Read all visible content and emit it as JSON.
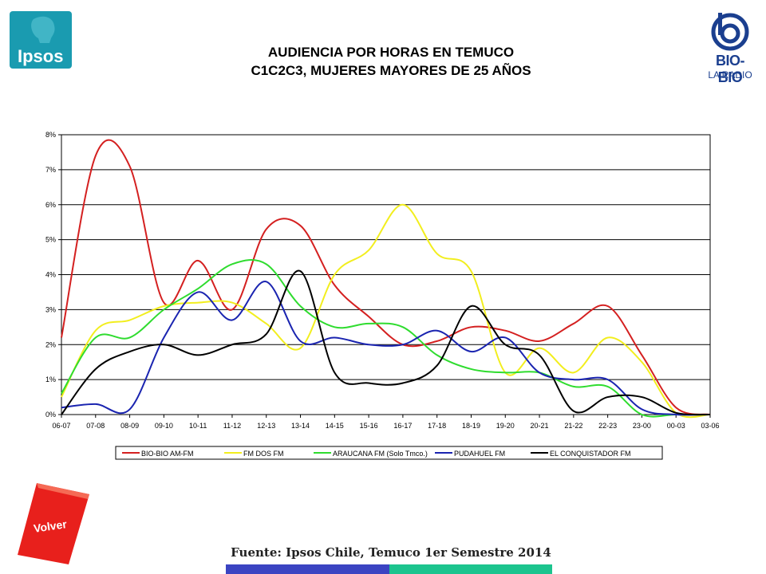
{
  "logos": {
    "ipsos_text": "Ipsos",
    "biobio_name": "BIO-BIO",
    "biobio_sub": "LA RADIO"
  },
  "title_line1": "AUDIENCIA POR HORAS EN TEMUCO",
  "title_line2": "C1C2C3, MUJERES MAYORES DE 25 AÑOS",
  "volver_label": "Volver",
  "source": "Fuente: Ipsos Chile, Temuco 1er Semestre 2014",
  "colors": {
    "bar_blue": "#3b44c2",
    "bar_teal": "#1cc48e",
    "volver_red": "#e8201c"
  },
  "chart_data": {
    "type": "line",
    "title": "",
    "xlabel": "",
    "ylabel": "",
    "ylim": [
      0,
      8
    ],
    "y_unit": "%",
    "y_ticks": [
      "0%",
      "1%",
      "2%",
      "3%",
      "4%",
      "5%",
      "6%",
      "7%",
      "8%"
    ],
    "grid": true,
    "legend_position": "bottom",
    "categories": [
      "06-07",
      "07-08",
      "08-09",
      "09-10",
      "10-11",
      "11-12",
      "12-13",
      "13-14",
      "14-15",
      "15-16",
      "16-17",
      "17-18",
      "18-19",
      "19-20",
      "20-21",
      "21-22",
      "22-23",
      "23-00",
      "00-03",
      "03-06"
    ],
    "series": [
      {
        "name": "BIO-BIO AM-FM",
        "color": "#d42020",
        "values": [
          2.2,
          7.4,
          7.1,
          3.2,
          4.4,
          3.0,
          5.3,
          5.4,
          3.7,
          2.8,
          2.0,
          2.1,
          2.5,
          2.4,
          2.1,
          2.6,
          3.1,
          1.7,
          0.2,
          0.0
        ]
      },
      {
        "name": "FM DOS FM",
        "color": "#f2ee1e",
        "values": [
          0.5,
          2.4,
          2.7,
          3.1,
          3.2,
          3.2,
          2.6,
          1.9,
          4.0,
          4.7,
          6.0,
          4.6,
          4.1,
          1.2,
          1.9,
          1.2,
          2.2,
          1.5,
          0.05,
          0.0
        ]
      },
      {
        "name": "ARAUCANA FM  (Solo Tmco.)",
        "color": "#2fdc2f",
        "values": [
          0.6,
          2.2,
          2.2,
          3.0,
          3.6,
          4.3,
          4.3,
          3.1,
          2.5,
          2.6,
          2.5,
          1.7,
          1.3,
          1.2,
          1.2,
          0.8,
          0.8,
          0.0,
          0.0,
          0.0
        ]
      },
      {
        "name": "PUDAHUEL FM",
        "color": "#1a24b0",
        "values": [
          0.2,
          0.3,
          0.15,
          2.2,
          3.5,
          2.7,
          3.8,
          2.1,
          2.2,
          2.0,
          2.0,
          2.4,
          1.8,
          2.2,
          1.2,
          1.0,
          1.0,
          0.15,
          0.0,
          0.0
        ]
      },
      {
        "name": "EL CONQUISTADOR FM",
        "color": "#000000",
        "values": [
          0.0,
          1.3,
          1.8,
          2.0,
          1.7,
          2.0,
          2.3,
          4.1,
          1.2,
          0.9,
          0.9,
          1.4,
          3.1,
          2.0,
          1.7,
          0.1,
          0.5,
          0.5,
          0.05,
          0.0
        ]
      }
    ]
  }
}
